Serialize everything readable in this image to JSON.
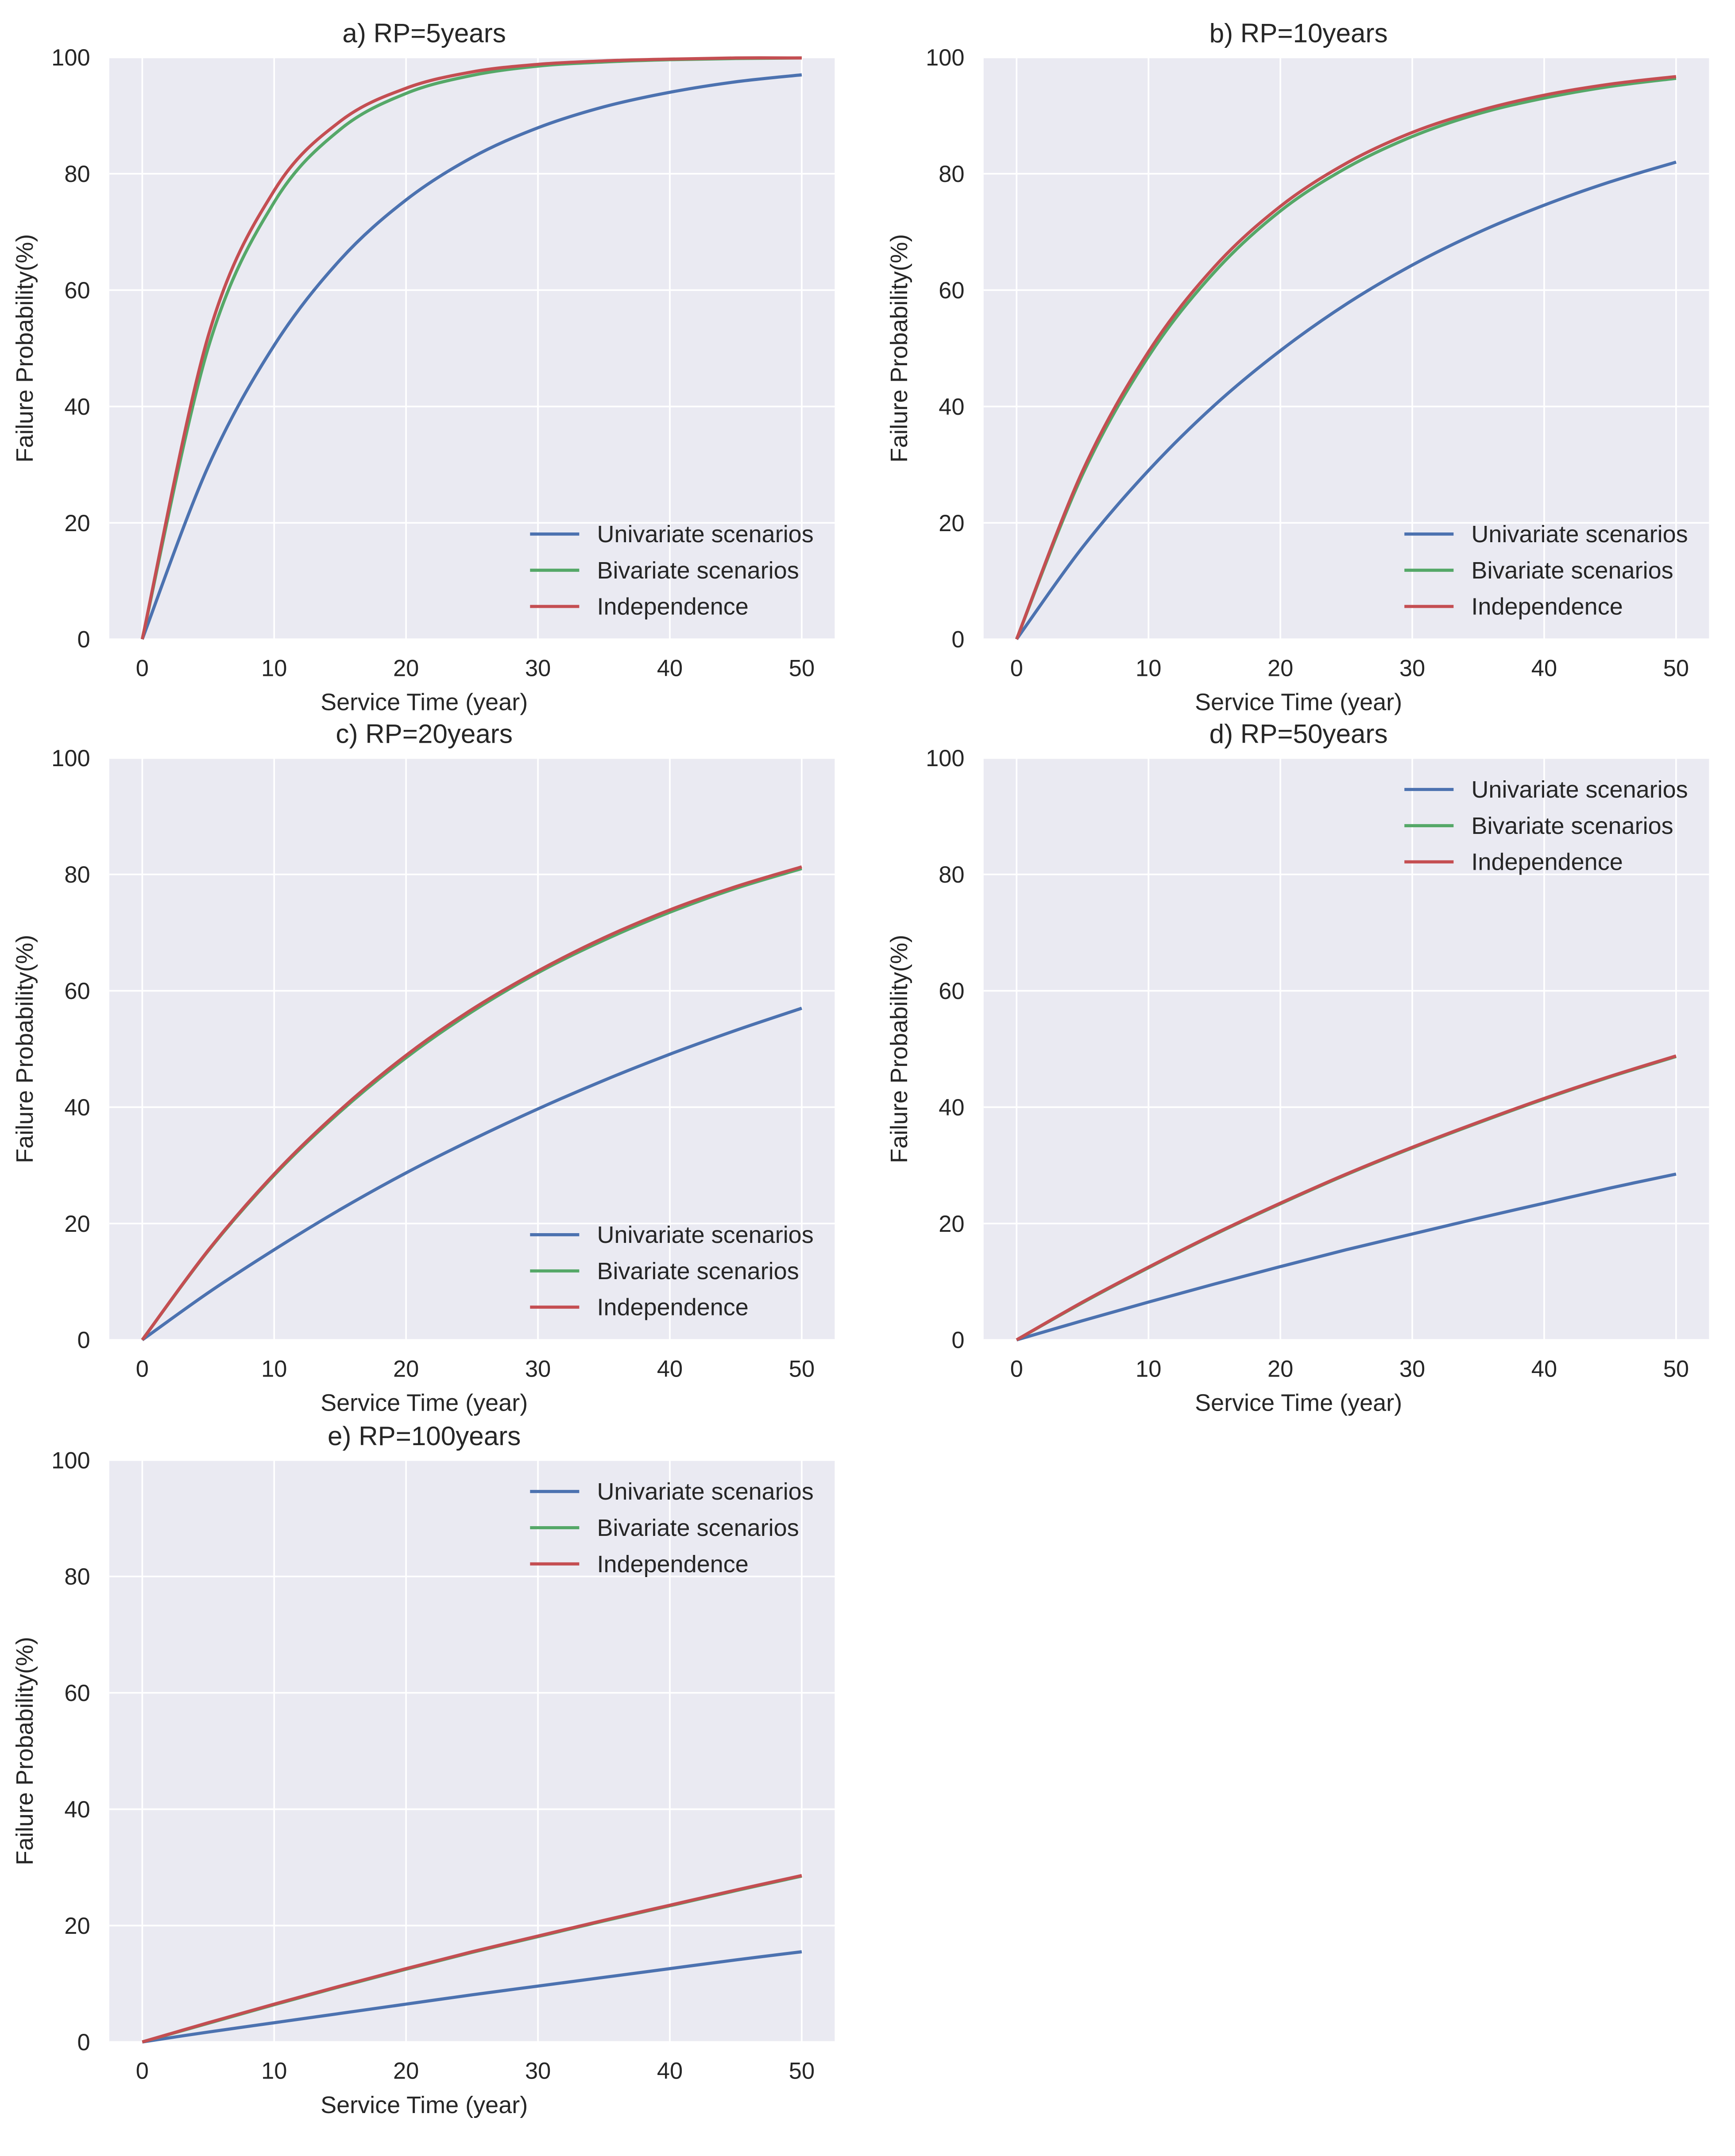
{
  "colors": {
    "plot_bg": "#EAEAF2",
    "grid": "#FFFFFF",
    "univariate": "#4C72B0",
    "bivariate": "#55A868",
    "independence": "#C44E52"
  },
  "chart_data": [
    {
      "type": "line",
      "title": "a) RP=5years",
      "xlabel": "Service Time (year)",
      "ylabel": "Failure Probability(%)",
      "xlim": [
        -2.5,
        52.5
      ],
      "ylim": [
        0,
        100
      ],
      "xticks": [
        0,
        10,
        20,
        30,
        40,
        50
      ],
      "yticks": [
        0,
        20,
        40,
        60,
        80,
        100
      ],
      "grid": true,
      "legend_placement": "lower-right",
      "x": [
        0,
        5,
        10,
        15,
        20,
        25,
        30,
        35,
        40,
        45,
        50
      ],
      "series": [
        {
          "name": "Univariate scenarios",
          "values": [
            0,
            29.7,
            50.5,
            65.2,
            75.5,
            82.8,
            87.9,
            91.5,
            94.0,
            95.8,
            97.0
          ]
        },
        {
          "name": "Bivariate scenarios",
          "values": [
            0,
            50.1,
            75.1,
            87.6,
            93.8,
            96.9,
            98.5,
            99.2,
            99.6,
            99.8,
            99.9
          ]
        },
        {
          "name": "Independence",
          "values": [
            0,
            52.1,
            77.1,
            89.0,
            94.7,
            97.5,
            98.8,
            99.4,
            99.7,
            99.9,
            99.9
          ]
        }
      ]
    },
    {
      "type": "line",
      "title": "b) RP=10years",
      "xlabel": "Service Time (year)",
      "ylabel": "Failure Probability(%)",
      "xlim": [
        -2.5,
        52.5
      ],
      "ylim": [
        0,
        100
      ],
      "xticks": [
        0,
        10,
        20,
        30,
        40,
        50
      ],
      "yticks": [
        0,
        20,
        40,
        60,
        80,
        100
      ],
      "grid": true,
      "legend_placement": "lower-right",
      "x": [
        0,
        5,
        10,
        15,
        20,
        25,
        30,
        35,
        40,
        45,
        50
      ],
      "series": [
        {
          "name": "Univariate scenarios",
          "values": [
            0,
            15.8,
            29.0,
            40.2,
            49.6,
            57.6,
            64.3,
            69.9,
            74.6,
            78.6,
            82.0
          ]
        },
        {
          "name": "Bivariate scenarios",
          "values": [
            0,
            28.3,
            48.6,
            63.1,
            73.6,
            81.0,
            86.4,
            90.3,
            93.0,
            95.0,
            96.4
          ]
        },
        {
          "name": "Independence",
          "values": [
            0,
            28.9,
            49.4,
            64.0,
            74.4,
            81.8,
            87.1,
            90.8,
            93.5,
            95.4,
            96.7
          ]
        }
      ]
    },
    {
      "type": "line",
      "title": "c) RP=20years",
      "xlabel": "Service Time (year)",
      "ylabel": "Failure Probability(%)",
      "xlim": [
        -2.5,
        52.5
      ],
      "ylim": [
        0,
        100
      ],
      "xticks": [
        0,
        10,
        20,
        30,
        40,
        50
      ],
      "yticks": [
        0,
        20,
        40,
        60,
        80,
        100
      ],
      "grid": true,
      "legend_placement": "lower-right",
      "x": [
        0,
        5,
        10,
        15,
        20,
        25,
        30,
        35,
        40,
        45,
        50
      ],
      "series": [
        {
          "name": "Univariate scenarios",
          "values": [
            0,
            8.1,
            15.5,
            22.4,
            28.7,
            34.4,
            39.7,
            44.6,
            49.1,
            53.2,
            57.0
          ]
        },
        {
          "name": "Bivariate scenarios",
          "values": [
            0,
            15.3,
            28.3,
            39.2,
            48.5,
            56.4,
            63.1,
            68.7,
            73.5,
            77.6,
            81.0
          ]
        },
        {
          "name": "Independence",
          "values": [
            0,
            15.4,
            28.5,
            39.5,
            48.9,
            56.8,
            63.4,
            69.1,
            73.9,
            77.9,
            81.3
          ]
        }
      ]
    },
    {
      "type": "line",
      "title": "d) RP=50years",
      "xlabel": "Service Time (year)",
      "ylabel": "Failure Probability(%)",
      "xlim": [
        -2.5,
        52.5
      ],
      "ylim": [
        0,
        100
      ],
      "xticks": [
        0,
        10,
        20,
        30,
        40,
        50
      ],
      "yticks": [
        0,
        20,
        40,
        60,
        80,
        100
      ],
      "grid": true,
      "legend_placement": "upper-right",
      "x": [
        0,
        5,
        10,
        15,
        20,
        25,
        30,
        35,
        40,
        45,
        50
      ],
      "series": [
        {
          "name": "Univariate scenarios",
          "values": [
            0,
            3.3,
            6.5,
            9.6,
            12.6,
            15.5,
            18.2,
            20.9,
            23.5,
            26.1,
            28.5
          ]
        },
        {
          "name": "Bivariate scenarios",
          "values": [
            0,
            6.4,
            12.4,
            18.1,
            23.4,
            28.4,
            33.0,
            37.3,
            41.4,
            45.2,
            48.7
          ]
        },
        {
          "name": "Independence",
          "values": [
            0,
            6.5,
            12.5,
            18.2,
            23.5,
            28.5,
            33.1,
            37.4,
            41.5,
            45.3,
            48.8
          ]
        }
      ]
    },
    {
      "type": "line",
      "title": "e) RP=100years",
      "xlabel": "Service Time (year)",
      "ylabel": "Failure Probability(%)",
      "xlim": [
        -2.5,
        52.5
      ],
      "ylim": [
        0,
        100
      ],
      "xticks": [
        0,
        10,
        20,
        30,
        40,
        50
      ],
      "yticks": [
        0,
        20,
        40,
        60,
        80,
        100
      ],
      "grid": true,
      "legend_placement": "upper-right",
      "x": [
        0,
        5,
        10,
        15,
        20,
        25,
        30,
        35,
        40,
        45,
        50
      ],
      "series": [
        {
          "name": "Univariate scenarios",
          "values": [
            0,
            1.7,
            3.3,
            4.9,
            6.5,
            8.1,
            9.6,
            11.1,
            12.6,
            14.1,
            15.5
          ]
        },
        {
          "name": "Bivariate scenarios",
          "values": [
            0,
            3.2,
            6.4,
            9.5,
            12.5,
            15.4,
            18.1,
            20.8,
            23.4,
            26.0,
            28.5
          ]
        },
        {
          "name": "Independence",
          "values": [
            0,
            3.3,
            6.5,
            9.6,
            12.6,
            15.5,
            18.2,
            20.9,
            23.5,
            26.1,
            28.6
          ]
        }
      ]
    }
  ]
}
